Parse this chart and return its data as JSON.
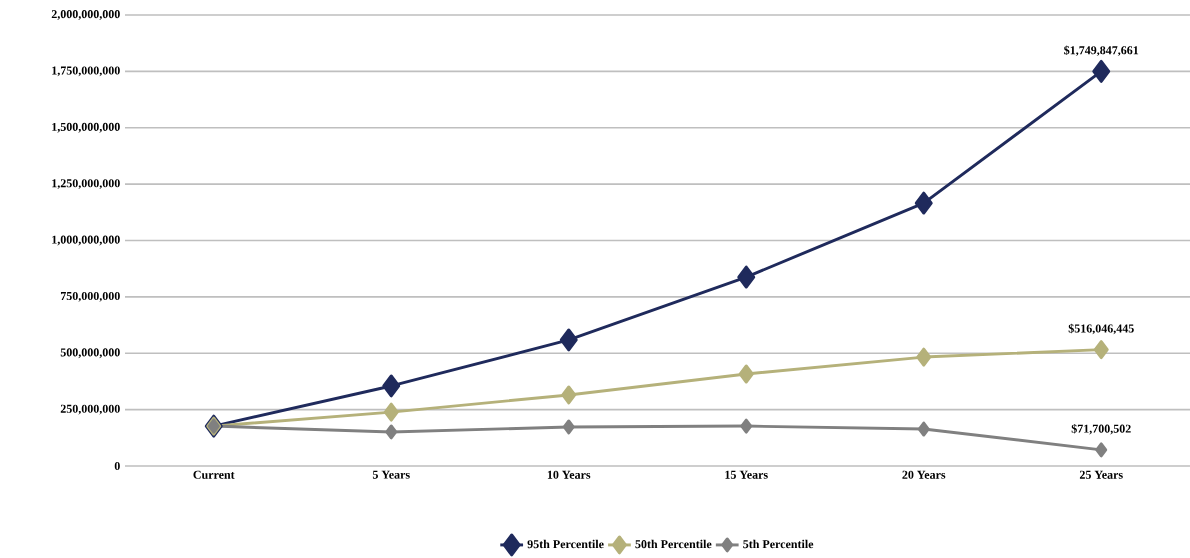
{
  "chart_data": {
    "type": "line",
    "categories": [
      "Current",
      "5 Years",
      "10 Years",
      "15 Years",
      "20 Years",
      "25 Years"
    ],
    "series": [
      {
        "name": "95th Percentile",
        "color": "#1f2a5c",
        "values": [
          177000000,
          355000000,
          559000000,
          838000000,
          1166000000,
          1749847661
        ],
        "value_labels": [
          null,
          null,
          null,
          null,
          null,
          "$1,749,847,661"
        ]
      },
      {
        "name": "50th Percentile",
        "color": "#b5b17a",
        "values": [
          177000000,
          239000000,
          315000000,
          408000000,
          483000000,
          516046445
        ],
        "value_labels": [
          null,
          null,
          null,
          null,
          null,
          "$516,046,445"
        ]
      },
      {
        "name": "5th Percentile",
        "color": "#808080",
        "values": [
          177000000,
          151000000,
          173000000,
          177000000,
          164000000,
          71700502
        ],
        "value_labels": [
          null,
          null,
          null,
          null,
          null,
          "$71,700,502"
        ]
      }
    ],
    "ylim": [
      0,
      2000000000
    ],
    "yticks": [
      0,
      {
        "value": 250000000,
        "label": "250,000,000"
      },
      {
        "value": 500000000,
        "label": "500,000,000"
      },
      {
        "value": 750000000,
        "label": "750,000,000"
      },
      {
        "value": 1000000000,
        "label": "1,000,000,000"
      },
      {
        "value": 1250000000,
        "label": "1,250,000,000"
      },
      {
        "value": 1500000000,
        "label": "1,500,000,000"
      },
      {
        "value": 1750000000,
        "label": "1,750,000,000"
      },
      {
        "value": 2000000000,
        "label": "2,000,000,000"
      }
    ],
    "grid": "y",
    "legend": "bottom",
    "marker": "diamond",
    "line_style": "solid"
  }
}
